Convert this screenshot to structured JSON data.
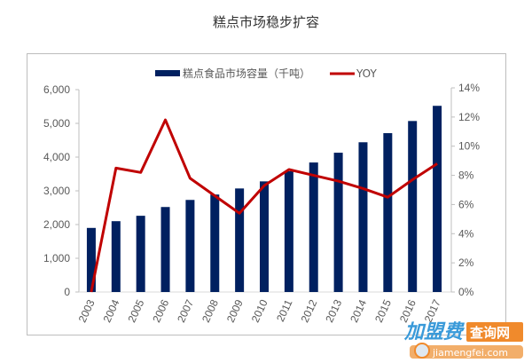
{
  "title": "糕点市场稳步扩容",
  "legend": {
    "bar_label": "糕点食品市场容量（千吨）",
    "line_label": "YOY"
  },
  "colors": {
    "bar": "#002060",
    "line": "#c00000",
    "axis": "#bfbfbf",
    "text": "#595959"
  },
  "left_axis_ticks": [
    "6,000",
    "5,000",
    "4,000",
    "3,000",
    "2,000",
    "1,000",
    "0"
  ],
  "right_axis_ticks": [
    "14%",
    "12%",
    "10%",
    "8%",
    "6%",
    "4%",
    "2%",
    "0%"
  ],
  "watermark": {
    "brand": "加盟费",
    "tag": "查询网",
    "url": "jiamengfei.com"
  },
  "chart_data": {
    "type": "bar",
    "title": "糕点市场稳步扩容",
    "categories": [
      "2003",
      "2004",
      "2005",
      "2006",
      "2007",
      "2008",
      "2009",
      "2010",
      "2011",
      "2012",
      "2013",
      "2014",
      "2015",
      "2016",
      "2017"
    ],
    "series": [
      {
        "name": "糕点食品市场容量（千吨）",
        "type": "bar",
        "axis": "left",
        "values": [
          1900,
          2100,
          2260,
          2520,
          2730,
          2890,
          3070,
          3280,
          3580,
          3840,
          4130,
          4440,
          4710,
          5070,
          5520
        ]
      },
      {
        "name": "YOY",
        "type": "line",
        "axis": "right",
        "unit": "%",
        "values": [
          0.0,
          8.5,
          8.2,
          11.8,
          7.8,
          6.6,
          5.4,
          7.3,
          8.4,
          8.0,
          7.6,
          7.1,
          6.5,
          7.7,
          8.8
        ]
      }
    ],
    "xlabel": "",
    "ylabel": "",
    "ylim": [
      0,
      6000
    ],
    "y2lim": [
      0,
      14
    ],
    "grid": false,
    "legend_position": "top"
  }
}
